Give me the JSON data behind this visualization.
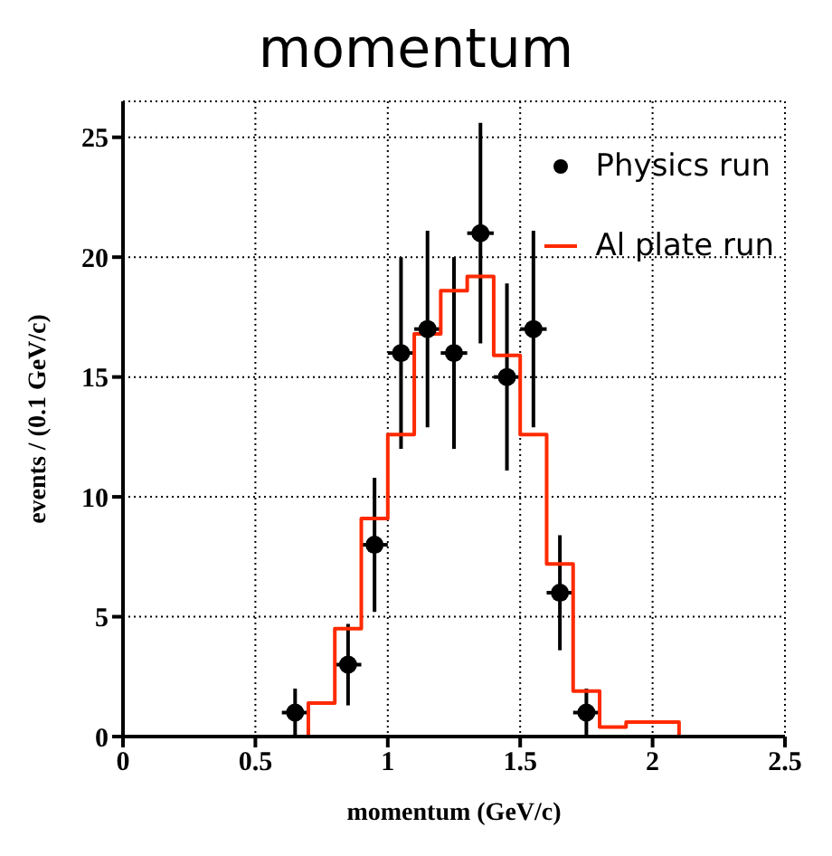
{
  "chart_data": {
    "type": "histogram",
    "title": "momentum",
    "xlabel": "momentum (GeV/c)",
    "ylabel": "events / (0.1 GeV/c)",
    "xlim": [
      0,
      2.5
    ],
    "xticks": [
      0,
      0.5,
      1,
      1.5,
      2,
      2.5
    ],
    "ylim": [
      0,
      26.5
    ],
    "yticks": [
      0,
      5,
      10,
      15,
      20,
      25
    ],
    "grid": true,
    "legend": "top right",
    "series": [
      {
        "type": "scatter",
        "name": "Physics run",
        "color": "#000000",
        "marker": "circle",
        "x": [
          0.65,
          0.85,
          0.95,
          1.05,
          1.15,
          1.25,
          1.35,
          1.45,
          1.55,
          1.65,
          1.75
        ],
        "values": [
          1,
          3,
          8,
          16,
          17,
          16,
          21,
          15,
          17,
          6,
          1
        ],
        "errors": [
          1,
          1.7,
          2.8,
          4,
          4.1,
          4,
          4.6,
          3.9,
          4.1,
          2.4,
          1
        ],
        "xerrors": [
          0.05,
          0.05,
          0.05,
          0.05,
          0.05,
          0.05,
          0.05,
          0.05,
          0.05,
          0.05,
          0.05
        ]
      },
      {
        "type": "histogram",
        "name": "Al plate run",
        "color": "#ff2a00",
        "bins": [
          0,
          0.7,
          0.8,
          0.9,
          1.0,
          1.1,
          1.2,
          1.3,
          1.4,
          1.5,
          1.6,
          1.7,
          1.8,
          1.9,
          2.1,
          2.5
        ],
        "values": [
          0,
          1.4,
          4.5,
          9.1,
          12.6,
          16.8,
          18.6,
          19.2,
          15.9,
          12.6,
          7.2,
          1.9,
          0.4,
          0.6,
          0
        ]
      }
    ]
  }
}
